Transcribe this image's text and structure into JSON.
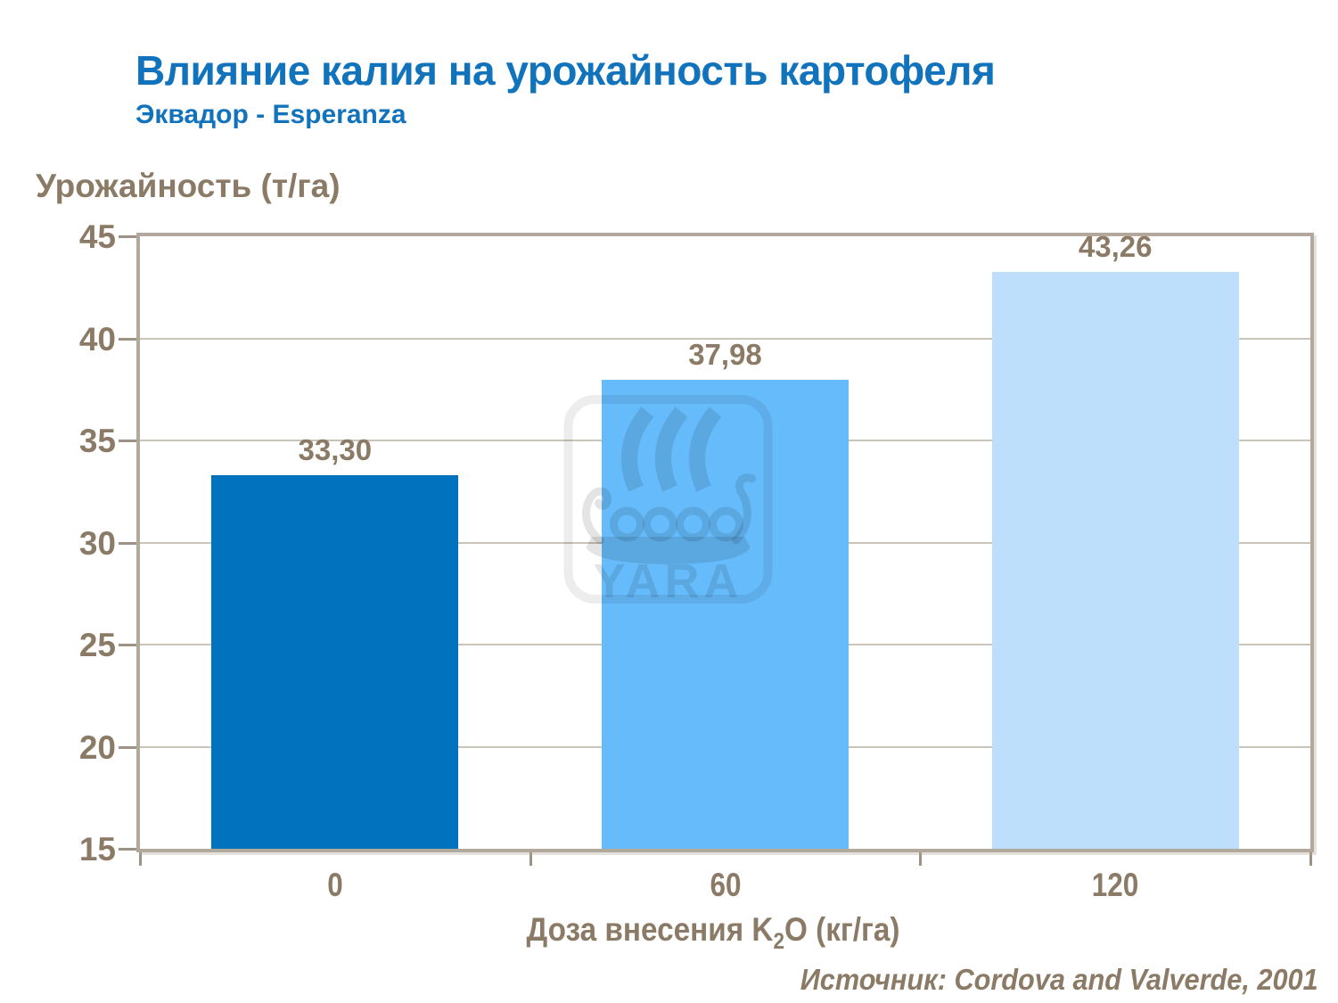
{
  "header": {
    "title": "Влияние калия на урожайность картофеля",
    "subtitle": "Эквадор - Esperanza"
  },
  "source_note": "Источник: Cordova and Valverde, 2001",
  "watermark": {
    "text": "YARA"
  },
  "theme": {
    "accent": "#1173BB",
    "text": "#8B7B66",
    "frame": "#B2A89B",
    "grid": "#CCC4B8",
    "tick": "#9C9285"
  },
  "chart_data": {
    "type": "bar",
    "title": "Влияние калия на урожайность картофеля",
    "subtitle": "Эквадор - Esperanza",
    "ylabel": "Урожайность (т/га)",
    "xlabel": "Доза внесения K2O (кг/га)",
    "xlabel_parts": {
      "prefix": "Доза внесения K",
      "sub": "2",
      "suffix": "O (кг/га)"
    },
    "categories": [
      "0",
      "60",
      "120"
    ],
    "values": [
      33.3,
      37.98,
      43.26
    ],
    "value_labels": [
      "33,30",
      "37,98",
      "43,26"
    ],
    "bar_colors": [
      "#0072BE",
      "#66BBFB",
      "#BDDFFB"
    ],
    "ylim": [
      15,
      45
    ],
    "yticks": [
      45,
      40,
      35,
      30,
      25,
      20,
      15
    ],
    "grid": true,
    "legend": false,
    "source": "Источник: Cordova and Valverde, 2001"
  }
}
